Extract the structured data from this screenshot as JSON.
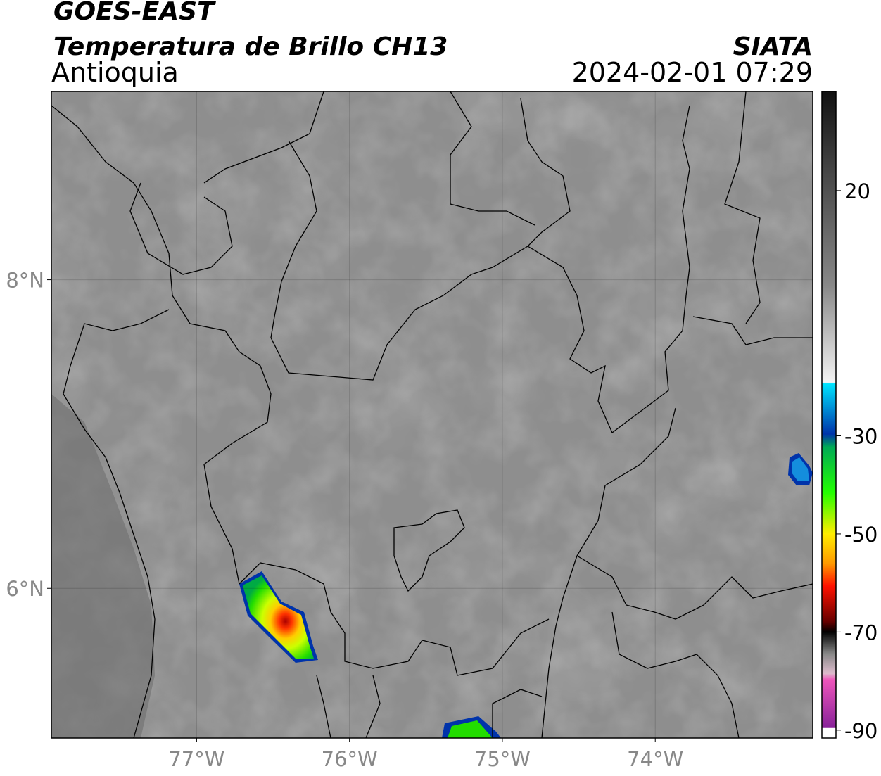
{
  "header": {
    "title": "GOES-EAST",
    "subtitle": "Temperatura de Brillo CH13",
    "region": "Antioquia",
    "source": "SIATA",
    "datetime": "2024-02-01 07:29"
  },
  "map": {
    "xlim": [
      -77.95,
      -72.97
    ],
    "ylim": [
      5.03,
      9.22
    ],
    "xticks": [
      {
        "value": -77,
        "label": "77°W"
      },
      {
        "value": -76,
        "label": "76°W"
      },
      {
        "value": -75,
        "label": "75°W"
      },
      {
        "value": -74,
        "label": "74°W"
      }
    ],
    "yticks": [
      {
        "value": 8,
        "label": "8°N"
      },
      {
        "value": 6,
        "label": "6°N"
      }
    ],
    "grid": true
  },
  "colorbar": {
    "lim": [
      -91.6,
      40.2
    ],
    "ticks": [
      20,
      -30,
      -50,
      -70,
      -90
    ]
  }
}
